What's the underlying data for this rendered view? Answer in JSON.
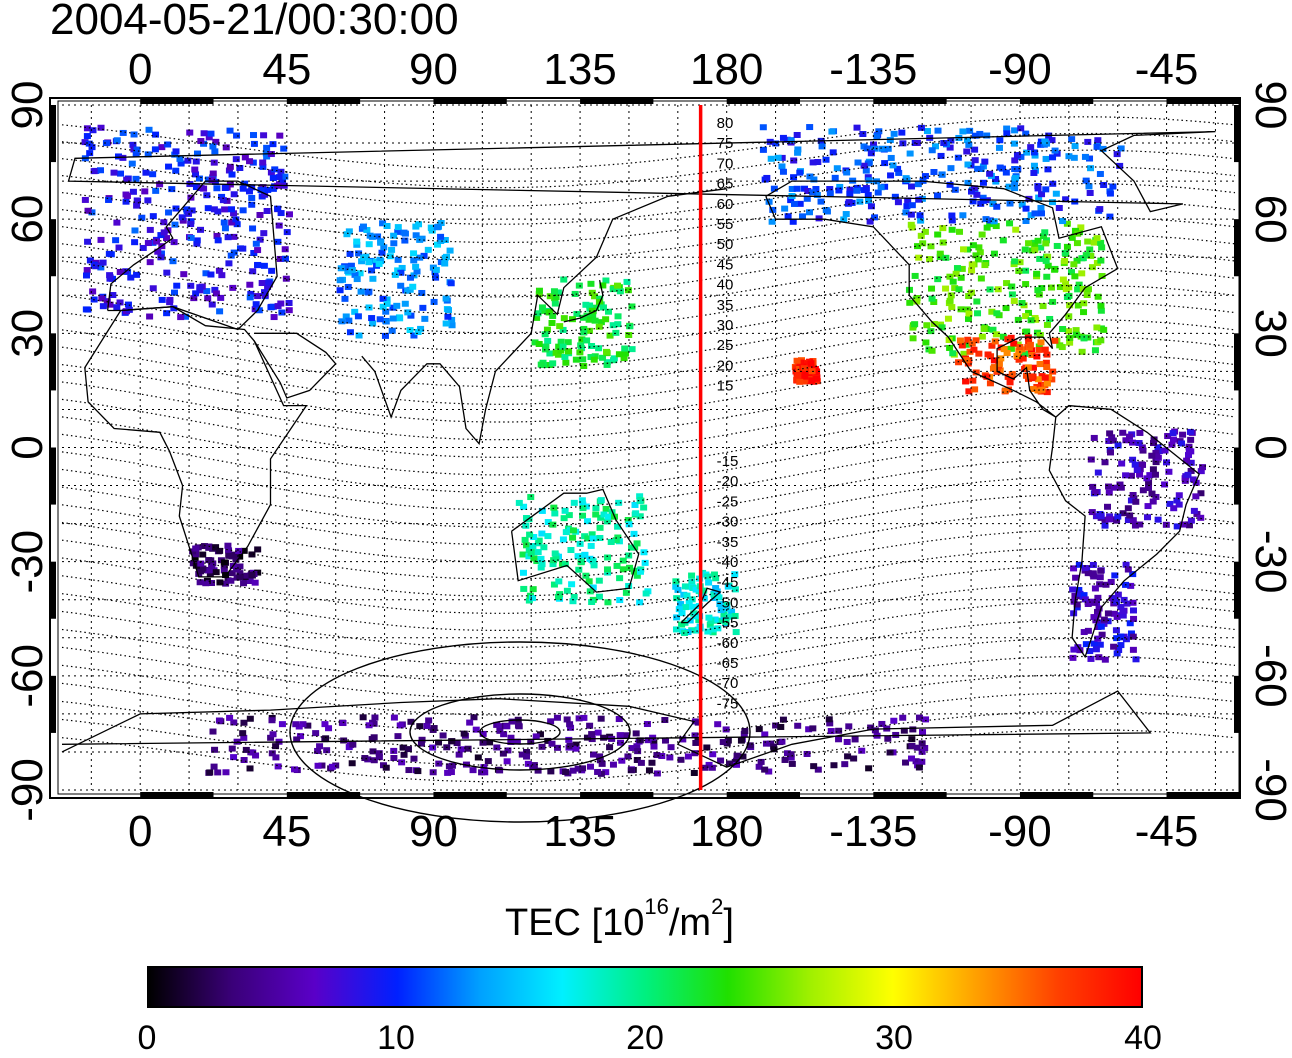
{
  "title": "2004-05-21/00:30:00",
  "map": {
    "top_lon_labels": [
      "0",
      "45",
      "90",
      "135",
      "180",
      "-135",
      "-90",
      "-45"
    ],
    "bottom_lon_labels": [
      "0",
      "45",
      "90",
      "135",
      "180",
      "-135",
      "-90",
      "-45"
    ],
    "lat_labels": [
      "90",
      "60",
      "30",
      "0",
      "-30",
      "-60",
      "-90"
    ],
    "meridian_marker_lon": 172,
    "meridian_marker_color": "#ff0000",
    "contour_labels": [
      "80",
      "75",
      "70",
      "65",
      "60",
      "55",
      "50",
      "45",
      "40",
      "35",
      "30",
      "25",
      "20",
      "15",
      "-15",
      "-20",
      "-25",
      "-30",
      "-35",
      "-40",
      "-45",
      "-50",
      "-55",
      "-60",
      "-65",
      "-70",
      "-75"
    ]
  },
  "colorbar": {
    "title_prefix": "TEC  [10",
    "title_exp1": "16",
    "title_mid": "/m",
    "title_exp2": "2",
    "title_suffix": "]",
    "tick_labels": [
      "0",
      "10",
      "20",
      "30",
      "40"
    ],
    "range": [
      0,
      40
    ],
    "colormap": [
      "#000000",
      "#3a0078",
      "#5a00c8",
      "#0020ff",
      "#00a0ff",
      "#00f0ff",
      "#00f080",
      "#20e000",
      "#a0f000",
      "#ffff00",
      "#ffa000",
      "#ff4000",
      "#ff0000"
    ]
  },
  "tec_regions": [
    {
      "name": "europe",
      "lon": [
        -18,
        45
      ],
      "lat": [
        35,
        85
      ],
      "tec": 9
    },
    {
      "name": "north-america",
      "lon": [
        -125,
        -65
      ],
      "lat": [
        25,
        60
      ],
      "tec": 24
    },
    {
      "name": "mexico-central-america",
      "lon": [
        -110,
        -80
      ],
      "lat": [
        15,
        30
      ],
      "tec": 37
    },
    {
      "name": "japan-east-asia",
      "lon": [
        120,
        150
      ],
      "lat": [
        22,
        45
      ],
      "tec": 22
    },
    {
      "name": "australia",
      "lon": [
        115,
        155
      ],
      "lat": [
        -40,
        -12
      ],
      "tec": 19
    },
    {
      "name": "new-zealand",
      "lon": [
        163,
        182
      ],
      "lat": [
        -48,
        -32
      ],
      "tec": 17
    },
    {
      "name": "hawaii",
      "lon": [
        -160,
        -153
      ],
      "lat": [
        18,
        24
      ],
      "tec": 39
    },
    {
      "name": "south-america-north",
      "lon": [
        -70,
        -35
      ],
      "lat": [
        -20,
        5
      ],
      "tec": 6
    },
    {
      "name": "south-america-south",
      "lon": [
        -75,
        -55
      ],
      "lat": [
        -55,
        -30
      ],
      "tec": 7
    },
    {
      "name": "africa-south",
      "lon": [
        15,
        35
      ],
      "lat": [
        -35,
        -25
      ],
      "tec": 3
    },
    {
      "name": "antarctica",
      "lon": [
        20,
        240
      ],
      "lat": [
        -85,
        -70
      ],
      "tec": 4
    },
    {
      "name": "siberia",
      "lon": [
        60,
        95
      ],
      "lat": [
        30,
        60
      ],
      "tec": 13
    },
    {
      "name": "alaska-canada",
      "lon": [
        -170,
        -60
      ],
      "lat": [
        60,
        85
      ],
      "tec": 11
    }
  ]
}
